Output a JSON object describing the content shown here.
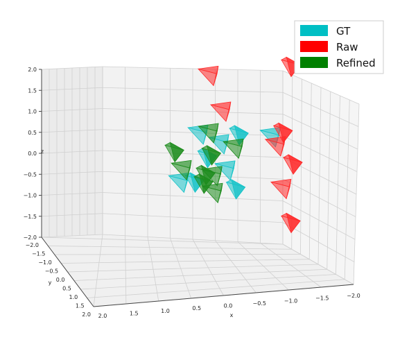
{
  "chart_data": {
    "type": "scatter",
    "projection": "3d",
    "xlabel": "x",
    "ylabel": "y",
    "zlabel": "z",
    "xlim": [
      2.0,
      -2.0
    ],
    "ylim": [
      -2.0,
      2.0
    ],
    "zlim": [
      -2.0,
      2.0
    ],
    "x_ticks": [
      "2.0",
      "1.5",
      "1.0",
      "0.5",
      "0.0",
      "−0.5",
      "−1.0",
      "−1.5",
      "−2.0"
    ],
    "y_ticks": [
      "−2.0",
      "−1.5",
      "−1.0",
      "−0.5",
      "0.0",
      "0.5",
      "1.0",
      "1.5",
      "2.0"
    ],
    "z_ticks": [
      "2.0",
      "1.5",
      "1.0",
      "0.5",
      "0.0",
      "−0.5",
      "−1.0",
      "−1.5",
      "−2.0"
    ],
    "grid": true,
    "legend_position": "top-right",
    "legend": [
      {
        "label": "GT",
        "color": "#00bfc4"
      },
      {
        "label": "Raw",
        "color": "#ff0000"
      },
      {
        "label": "Refined",
        "color": "#008000"
      }
    ],
    "series": [
      {
        "name": "GT",
        "color": "#17c3c8",
        "marker": "camera-frustum",
        "points": [
          [
            0.4,
            -0.6,
            0.3
          ],
          [
            -0.1,
            -0.6,
            0.45
          ],
          [
            0.9,
            -0.6,
            0.6
          ],
          [
            0.7,
            -0.7,
            0.0
          ],
          [
            -0.8,
            -0.7,
            0.3
          ],
          [
            1.0,
            -0.7,
            -0.55
          ],
          [
            0.25,
            -0.6,
            -0.35
          ],
          [
            0.05,
            -0.8,
            -0.85
          ],
          [
            1.4,
            -0.7,
            -0.5
          ]
        ]
      },
      {
        "name": "Raw",
        "color": "#ff2a2a",
        "marker": "camera-frustum",
        "points": [
          [
            0.8,
            -1.0,
            1.95
          ],
          [
            -1.2,
            -1.0,
            1.9
          ],
          [
            0.5,
            -1.0,
            1.05
          ],
          [
            -1.05,
            -0.9,
            0.35
          ],
          [
            -0.85,
            -0.9,
            0.05
          ],
          [
            -1.25,
            -1.0,
            -0.45
          ],
          [
            -0.95,
            -1.0,
            -1.0
          ],
          [
            -1.2,
            -1.0,
            -1.85
          ]
        ]
      },
      {
        "name": "Refined",
        "color": "#1e8c1e",
        "marker": "camera-frustum",
        "points": [
          [
            0.65,
            -0.6,
            0.6
          ],
          [
            1.45,
            -0.6,
            0.25
          ],
          [
            1.3,
            -0.6,
            -0.2
          ],
          [
            0.6,
            -0.7,
            0.05
          ],
          [
            0.6,
            -0.7,
            -0.45
          ],
          [
            0.7,
            -0.6,
            -0.4
          ],
          [
            0.05,
            -0.6,
            0.15
          ],
          [
            0.75,
            -0.6,
            -0.6
          ],
          [
            0.55,
            -0.6,
            -0.85
          ]
        ]
      }
    ]
  }
}
